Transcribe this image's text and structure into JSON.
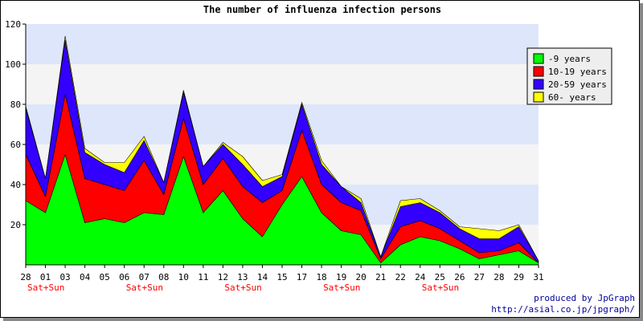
{
  "chart_data": {
    "type": "area",
    "stacked": true,
    "title": "The number of influenza infection persons",
    "categories": [
      "28",
      "01",
      "03",
      "04",
      "05",
      "06",
      "07",
      "08",
      "10",
      "11",
      "12",
      "13",
      "14",
      "15",
      "17",
      "18",
      "19",
      "20",
      "21",
      "22",
      "24",
      "25",
      "26",
      "27",
      "28",
      "29",
      "31"
    ],
    "weekend_labels": [
      {
        "category_index": 0,
        "text": "Sat+Sun"
      },
      {
        "category_index": 5,
        "text": "Sat+Sun"
      },
      {
        "category_index": 10,
        "text": "Sat+Sun"
      },
      {
        "category_index": 15,
        "text": "Sat+Sun"
      },
      {
        "category_index": 20,
        "text": "Sat+Sun"
      }
    ],
    "ylim": [
      0,
      120
    ],
    "yticks": [
      20,
      40,
      60,
      80,
      100,
      120
    ],
    "grid": true,
    "band_colors": [
      "#f4f4f4",
      "#dde6fa"
    ],
    "legend_position": "top-right",
    "series": [
      {
        "name": "-9 years",
        "color": "#00ff00",
        "values": [
          32,
          26,
          55,
          21,
          23,
          21,
          26,
          25,
          54,
          26,
          37,
          23,
          14,
          30,
          44,
          26,
          17,
          15,
          1,
          10,
          14,
          12,
          8,
          3,
          5,
          7,
          1
        ]
      },
      {
        "name": "10-19 years",
        "color": "#ff0000",
        "values": [
          23,
          8,
          30,
          22,
          17,
          16,
          26,
          10,
          19,
          14,
          16,
          16,
          17,
          7,
          23,
          14,
          14,
          12,
          2,
          9,
          8,
          6,
          4,
          3,
          2,
          4,
          0
        ]
      },
      {
        "name": "20-59 years",
        "color": "#3300ff",
        "values": [
          23,
          9,
          27,
          13,
          10,
          9,
          10,
          6,
          13,
          9,
          7,
          11,
          8,
          7,
          13,
          10,
          8,
          4,
          1,
          10,
          9,
          8,
          6,
          7,
          6,
          8,
          1
        ]
      },
      {
        "name": "60- years",
        "color": "#ffff00",
        "values": [
          1,
          0,
          2,
          2,
          1,
          5,
          2,
          0,
          1,
          0,
          1,
          4,
          3,
          1,
          1,
          2,
          0,
          2,
          0,
          3,
          2,
          1,
          1,
          5,
          4,
          1,
          0
        ]
      }
    ],
    "credit": [
      "produced by JpGraph",
      "http://asial.co.jp/jpgraph/"
    ]
  }
}
